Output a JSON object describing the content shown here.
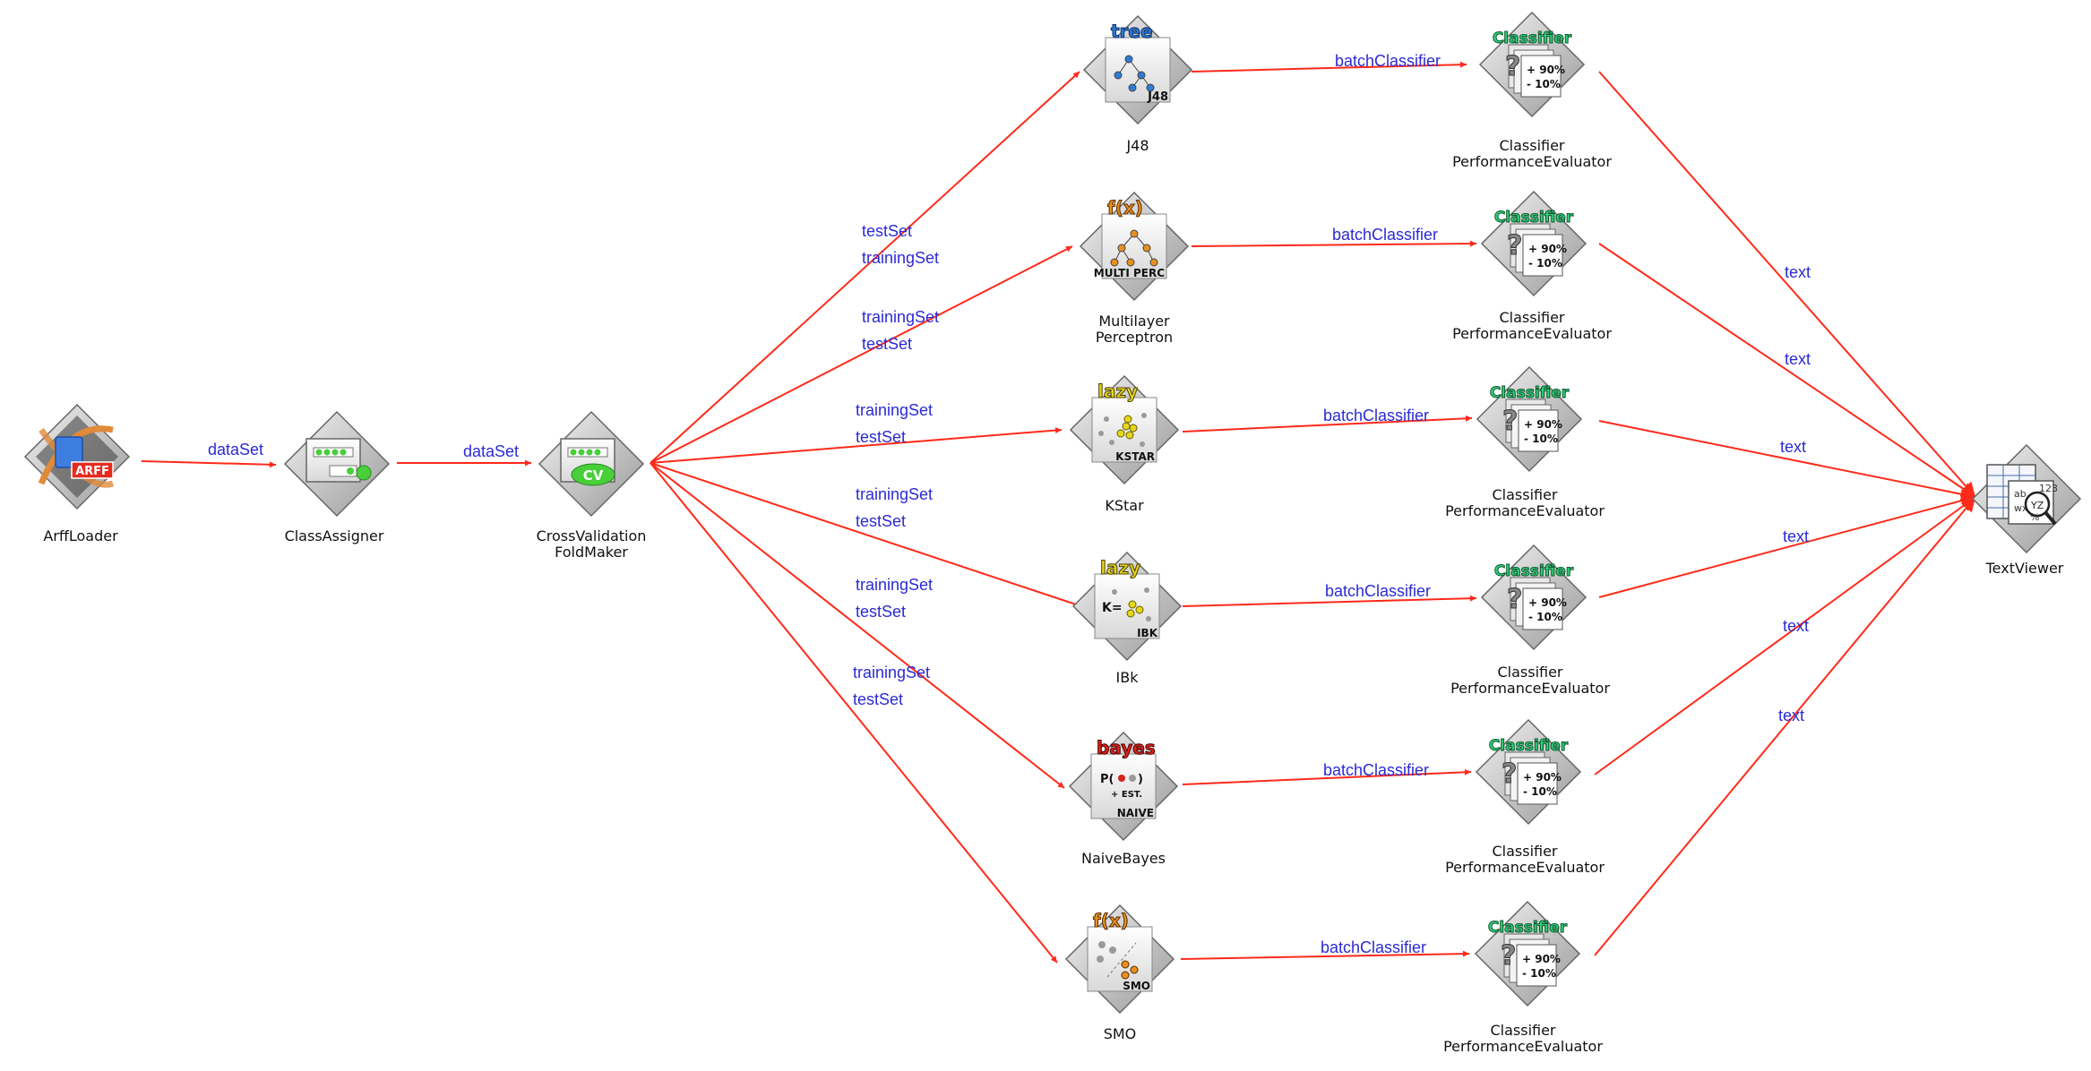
{
  "nodes": {
    "arff_loader": {
      "label": "ArffLoader",
      "badge": "ARFF"
    },
    "class_assigner": {
      "label": "ClassAssigner"
    },
    "cv_foldmaker": {
      "label_line1": "CrossValidation",
      "label_line2": "FoldMaker",
      "badge": "CV"
    },
    "classifiers": [
      {
        "id": "j48",
        "label_line1": "J48",
        "label_line2": "",
        "tag": "tree",
        "tag_color": "#2e7cd6",
        "badge": "J48"
      },
      {
        "id": "mlp",
        "label_line1": "Multilayer",
        "label_line2": "Perceptron",
        "tag": "f(x)",
        "tag_color": "#e8901e",
        "badge": "MULTI PERC"
      },
      {
        "id": "kstar",
        "label_line1": "KStar",
        "label_line2": "",
        "tag": "lazy",
        "tag_color": "#e6d51c",
        "badge": "KSTAR"
      },
      {
        "id": "ibk",
        "label_line1": "IBk",
        "label_line2": "",
        "tag": "lazy",
        "tag_color": "#e6d51c",
        "badge": "IBK"
      },
      {
        "id": "naivebayes",
        "label_line1": "NaiveBayes",
        "label_line2": "",
        "tag": "bayes",
        "tag_color": "#d8241c",
        "badge": "NAIVE"
      },
      {
        "id": "smo",
        "label_line1": "SMO",
        "label_line2": "",
        "tag": "f(x)",
        "tag_color": "#e8901e",
        "badge": "SMO"
      }
    ],
    "evaluator": {
      "label_line1": "Classifier",
      "label_line2": "PerformanceEvaluator",
      "tag": "Classifier",
      "tag_color": "#2fd07a",
      "plus": "+ 90%",
      "minus": "- 10%"
    },
    "text_viewer": {
      "label": "TextViewer"
    }
  },
  "connections": {
    "dataset_1": "dataSet",
    "dataset_2": "dataSet",
    "cv_to_classifiers": [
      {
        "first": "testSet",
        "second": "trainingSet"
      },
      {
        "first": "trainingSet",
        "second": "testSet"
      },
      {
        "first": "trainingSet",
        "second": "testSet"
      },
      {
        "first": "trainingSet",
        "second": "testSet"
      },
      {
        "first": "trainingSet",
        "second": "testSet"
      },
      {
        "first": "trainingSet",
        "second": "testSet"
      }
    ],
    "batch_classifier": [
      "batchClassifier",
      "batchClassifier",
      "batchClassifier",
      "batchClassifier",
      "batchClassifier",
      "batchClassifier"
    ],
    "text": [
      "text",
      "text",
      "text",
      "text",
      "text",
      "text"
    ]
  },
  "colors": {
    "edge": "#ff2a1a",
    "edge_label": "#2b2bd4"
  }
}
